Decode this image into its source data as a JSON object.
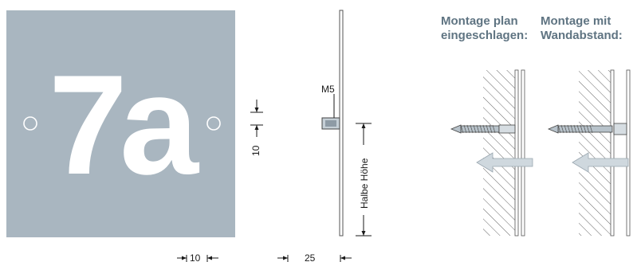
{
  "plate": {
    "number": "7a",
    "color": "#a9b6c0"
  },
  "dimensions": {
    "edge_offset": "10",
    "hole_offset": "10",
    "thickness": "25",
    "thread": "M5",
    "half_height": "Halbe Höhe"
  },
  "mounting": {
    "flush": {
      "title_line1": "Montage plan",
      "title_line2": "eingeschlagen:"
    },
    "spaced": {
      "title_line1": "Montage mit",
      "title_line2": "Wandabstand:"
    },
    "arrow_color": "#cfd8de",
    "heading_color": "#5f7482"
  }
}
